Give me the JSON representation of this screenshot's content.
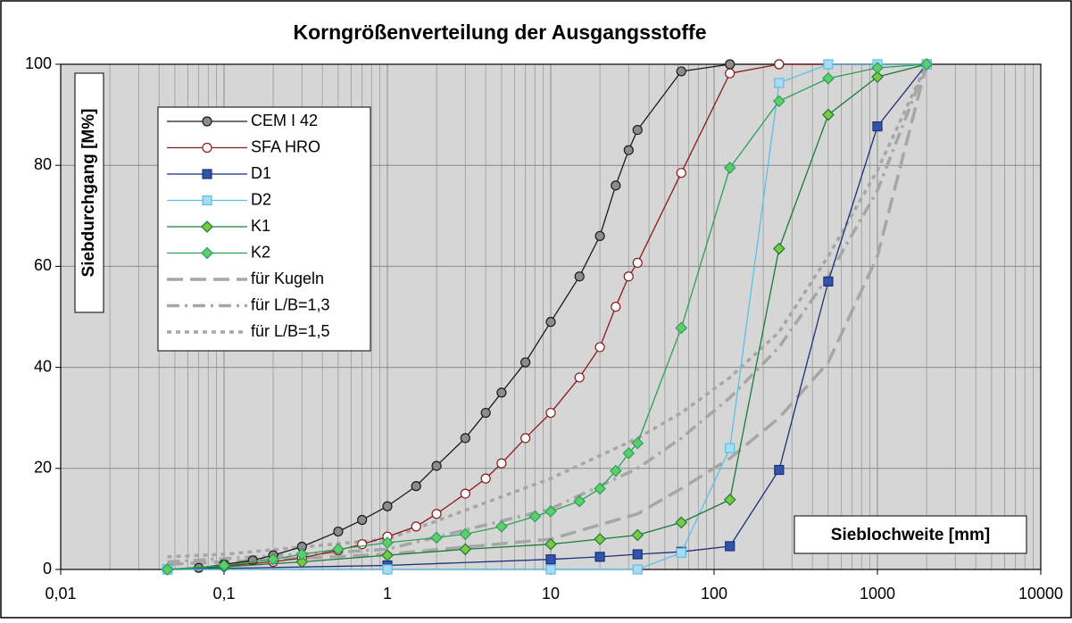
{
  "chart_data": {
    "type": "line",
    "title": "Korngrößenverteilung der Ausgangsstoffe",
    "y_label": "Siebdurchgang [M%]",
    "x_label": "Sieblochweite [mm]",
    "log_x": true,
    "grid": true,
    "xlim": [
      0.01,
      10000
    ],
    "ylim": [
      0,
      100
    ],
    "xticks": [
      {
        "value": 0.01,
        "label": "0,01"
      },
      {
        "value": 0.1,
        "label": "0,1"
      },
      1,
      10,
      100,
      1000,
      10000
    ],
    "yticks": [
      0,
      20,
      40,
      60,
      80,
      100
    ],
    "legend": "upper left",
    "series": [
      {
        "name": "CEM I 42",
        "color": "#1a1a1a",
        "marker": "circle",
        "marker_fill": "#8c8c8c",
        "x": [
          0.045,
          0.07,
          0.1,
          0.15,
          0.2,
          0.3,
          0.5,
          0.7,
          1,
          1.5,
          2,
          3,
          4,
          5,
          7,
          10,
          15,
          20,
          25,
          30,
          34,
          63,
          125,
          250,
          2000
        ],
        "values": [
          0,
          0.3,
          1,
          1.8,
          2.8,
          4.5,
          7.5,
          9.8,
          12.5,
          16.5,
          20.5,
          26,
          31,
          35,
          41,
          49,
          58,
          66,
          76,
          83,
          87,
          98.6,
          100,
          100,
          100
        ]
      },
      {
        "name": "SFA HRO",
        "color": "#8b1a1a",
        "marker": "circle",
        "marker_fill": "#ffffff",
        "x": [
          0.045,
          0.1,
          0.2,
          0.3,
          0.5,
          0.7,
          1,
          1.5,
          2,
          3,
          4,
          5,
          7,
          10,
          15,
          20,
          25,
          30,
          34,
          63,
          125,
          250,
          500,
          2000
        ],
        "values": [
          0,
          0.7,
          1.5,
          2.3,
          3.8,
          5,
          6.5,
          8.5,
          11,
          15,
          18,
          21,
          26,
          31,
          38,
          44,
          52,
          58,
          60.7,
          78.5,
          98.2,
          100,
          100,
          100
        ]
      },
      {
        "name": "D1",
        "color": "#1f2f7a",
        "marker": "square",
        "marker_fill": "#2e55a8",
        "x": [
          0.045,
          1,
          10,
          20,
          34,
          63,
          125,
          250,
          500,
          1000,
          2000
        ],
        "values": [
          0,
          0.8,
          2,
          2.5,
          3,
          3.5,
          4.6,
          19.7,
          57,
          87.7,
          100
        ]
      },
      {
        "name": "D2",
        "color": "#5bc0e6",
        "marker": "square",
        "marker_fill": "#a8daf2",
        "x": [
          0.045,
          1,
          10,
          34,
          63,
          125,
          250,
          500,
          1000,
          2000
        ],
        "values": [
          0,
          0,
          0,
          0,
          3.3,
          24,
          96.3,
          100,
          100,
          100
        ]
      },
      {
        "name": "K1",
        "color": "#1a7a3a",
        "marker": "diamond",
        "marker_fill": "#7ac943",
        "x": [
          0.045,
          0.1,
          0.3,
          1,
          3,
          10,
          20,
          34,
          63,
          125,
          250,
          500,
          1000,
          2000
        ],
        "values": [
          0,
          0.5,
          1.5,
          2.8,
          4,
          5,
          6,
          6.8,
          9.3,
          13.8,
          63.5,
          90,
          97.5,
          100
        ]
      },
      {
        "name": "K2",
        "color": "#2e9e5a",
        "marker": "diamond",
        "marker_fill": "#5ccf6c",
        "x": [
          0.045,
          0.1,
          0.2,
          0.3,
          0.5,
          1,
          2,
          3,
          5,
          8,
          10,
          15,
          20,
          25,
          30,
          34,
          63,
          125,
          250,
          500,
          1000,
          2000
        ],
        "values": [
          0,
          0.8,
          2,
          3,
          4,
          5.3,
          6.3,
          7,
          8.5,
          10.5,
          11.5,
          13.5,
          16,
          19.5,
          23,
          25,
          47.8,
          79.5,
          92.7,
          97.2,
          99.3,
          100
        ]
      },
      {
        "name": "für Kugeln",
        "color": "#a6a6a6",
        "dash": "18 8",
        "x": [
          0.045,
          1,
          10,
          34,
          63,
          125,
          250,
          500,
          1000,
          2000
        ],
        "values": [
          1,
          3,
          6,
          11,
          16,
          22,
          30,
          41,
          62,
          100
        ]
      },
      {
        "name": "für L/B=1,3",
        "color": "#a6a6a6",
        "dash": "14 6 3 6",
        "x": [
          0.045,
          1,
          10,
          34,
          63,
          125,
          250,
          500,
          1000,
          2000
        ],
        "values": [
          1.5,
          4,
          12,
          20,
          26,
          34,
          44,
          58,
          75,
          100
        ]
      },
      {
        "name": "für L/B=1,5",
        "color": "#a6a6a6",
        "dash": "5 5",
        "x": [
          0.045,
          0.1,
          1,
          10,
          34,
          63,
          125,
          250,
          500,
          1000,
          2000
        ],
        "values": [
          2.5,
          3,
          6,
          18,
          26,
          31,
          38,
          47,
          62,
          79,
          100
        ]
      }
    ]
  }
}
